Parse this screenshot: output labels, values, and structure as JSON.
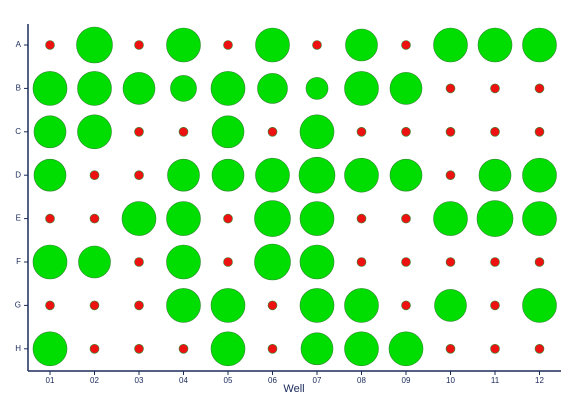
{
  "chart_data": {
    "type": "bubble",
    "x_label": "Well",
    "categories": [
      "01",
      "02",
      "03",
      "04",
      "05",
      "06",
      "07",
      "08",
      "09",
      "10",
      "11",
      "12"
    ],
    "series": [
      {
        "name": "A",
        "values": [
          4.5,
          18,
          4.5,
          17,
          4.5,
          17,
          4.5,
          16,
          4.5,
          17,
          17,
          17
        ],
        "colors": [
          "#ee1111",
          "#00dd00",
          "#ee1111",
          "#00dd00",
          "#ee1111",
          "#00dd00",
          "#ee1111",
          "#00dd00",
          "#ee1111",
          "#00dd00",
          "#00dd00",
          "#00dd00"
        ]
      },
      {
        "name": "B",
        "values": [
          17,
          17,
          16,
          13,
          17,
          15,
          11,
          17,
          16,
          4.5,
          4.5,
          4.5
        ],
        "colors": [
          "#00dd00",
          "#00dd00",
          "#00dd00",
          "#00dd00",
          "#00dd00",
          "#00dd00",
          "#00dd00",
          "#00dd00",
          "#00dd00",
          "#ee1111",
          "#ee1111",
          "#ee1111"
        ]
      },
      {
        "name": "C",
        "values": [
          16,
          17,
          4.5,
          4.5,
          16,
          4.5,
          17,
          4.5,
          4.5,
          4.5,
          4.5,
          4.5
        ],
        "colors": [
          "#00dd00",
          "#00dd00",
          "#ee1111",
          "#ee1111",
          "#00dd00",
          "#ee1111",
          "#00dd00",
          "#ee1111",
          "#ee1111",
          "#ee1111",
          "#ee1111",
          "#ee1111"
        ]
      },
      {
        "name": "D",
        "values": [
          16,
          4.5,
          4.5,
          16,
          16,
          17,
          18,
          17,
          16,
          4.5,
          16,
          17
        ],
        "colors": [
          "#00dd00",
          "#ee1111",
          "#ee1111",
          "#00dd00",
          "#00dd00",
          "#00dd00",
          "#00dd00",
          "#00dd00",
          "#00dd00",
          "#ee1111",
          "#00dd00",
          "#00dd00"
        ]
      },
      {
        "name": "E",
        "values": [
          4.5,
          4.5,
          17,
          17,
          4.5,
          18,
          17,
          4.5,
          4.5,
          17,
          18,
          17
        ],
        "colors": [
          "#ee1111",
          "#ee1111",
          "#00dd00",
          "#00dd00",
          "#ee1111",
          "#00dd00",
          "#00dd00",
          "#ee1111",
          "#ee1111",
          "#00dd00",
          "#00dd00",
          "#00dd00"
        ]
      },
      {
        "name": "F",
        "values": [
          17,
          16,
          4.5,
          17,
          4.5,
          18,
          17,
          4.5,
          4.5,
          4.5,
          4.5,
          4.5
        ],
        "colors": [
          "#00dd00",
          "#00dd00",
          "#ee1111",
          "#00dd00",
          "#ee1111",
          "#00dd00",
          "#00dd00",
          "#ee1111",
          "#ee1111",
          "#ee1111",
          "#ee1111",
          "#ee1111"
        ]
      },
      {
        "name": "G",
        "values": [
          4.5,
          4.5,
          4.5,
          17,
          17,
          4.5,
          17,
          17,
          4.5,
          16,
          4.5,
          17
        ],
        "colors": [
          "#ee1111",
          "#ee1111",
          "#ee1111",
          "#00dd00",
          "#00dd00",
          "#ee1111",
          "#00dd00",
          "#00dd00",
          "#ee1111",
          "#00dd00",
          "#ee1111",
          "#00dd00"
        ]
      },
      {
        "name": "H",
        "values": [
          17,
          4.5,
          4.5,
          4.5,
          17,
          4.5,
          16,
          17,
          17,
          4.5,
          4.5,
          4.5
        ],
        "colors": [
          "#00dd00",
          "#ee1111",
          "#ee1111",
          "#ee1111",
          "#00dd00",
          "#ee1111",
          "#00dd00",
          "#00dd00",
          "#00dd00",
          "#ee1111",
          "#ee1111",
          "#ee1111"
        ]
      }
    ]
  }
}
